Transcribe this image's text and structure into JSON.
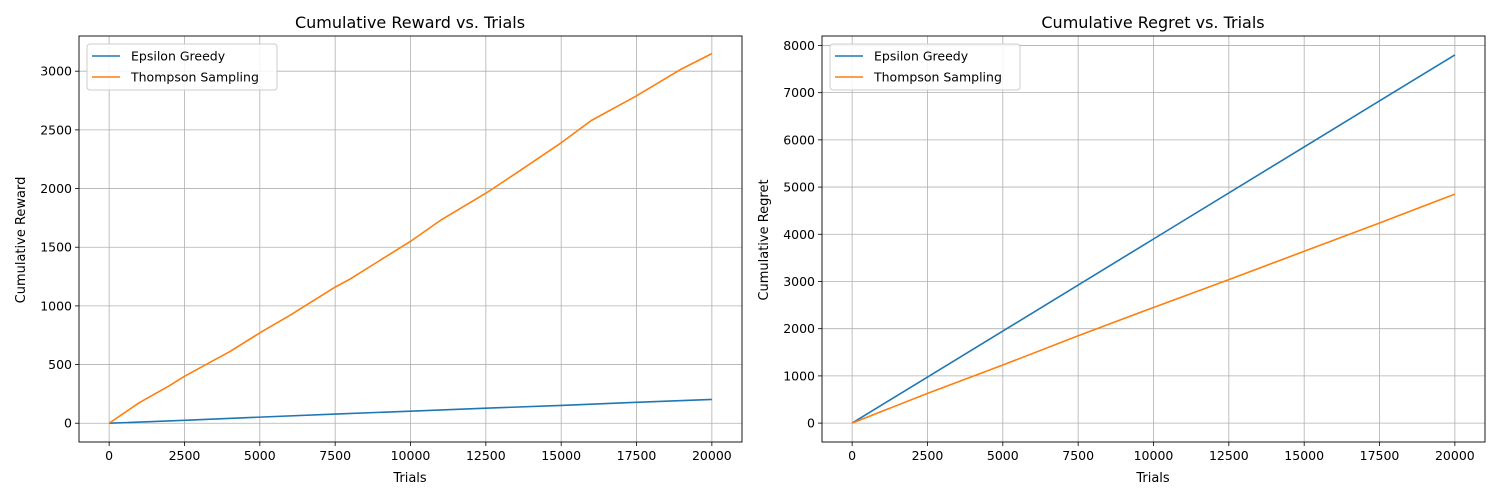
{
  "chart_data": [
    {
      "type": "line",
      "title": "Cumulative Reward vs. Trials",
      "xlabel": "Trials",
      "ylabel": "Cumulative Reward",
      "xlim": [
        -1000,
        21000
      ],
      "ylim": [
        -160,
        3300
      ],
      "xticks": [
        0,
        2500,
        5000,
        7500,
        10000,
        12500,
        15000,
        17500,
        20000
      ],
      "yticks": [
        0,
        500,
        1000,
        1500,
        2000,
        2500,
        3000
      ],
      "grid": true,
      "legend_position": "top-left",
      "series": [
        {
          "name": "Epsilon Greedy",
          "color": "#1f77b4",
          "x": [
            0,
            2500,
            5000,
            7500,
            10000,
            12500,
            15000,
            17500,
            20000
          ],
          "y": [
            0,
            25,
            52,
            78,
            103,
            128,
            152,
            178,
            203
          ]
        },
        {
          "name": "Thompson Sampling",
          "color": "#ff7f0e",
          "x": [
            0,
            1000,
            2000,
            2500,
            3500,
            4000,
            5000,
            6000,
            7500,
            8000,
            9000,
            10000,
            11000,
            12500,
            13500,
            15000,
            16000,
            17500,
            19000,
            20000
          ],
          "y": [
            0,
            175,
            320,
            400,
            540,
            610,
            770,
            920,
            1160,
            1230,
            1390,
            1550,
            1730,
            1960,
            2130,
            2390,
            2580,
            2790,
            3020,
            3150
          ]
        }
      ]
    },
    {
      "type": "line",
      "title": "Cumulative Regret vs. Trials",
      "xlabel": "Trials",
      "ylabel": "Cumulative Regret",
      "xlim": [
        -1000,
        21000
      ],
      "ylim": [
        -400,
        8200
      ],
      "xticks": [
        0,
        2500,
        5000,
        7500,
        10000,
        12500,
        15000,
        17500,
        20000
      ],
      "yticks": [
        0,
        1000,
        2000,
        3000,
        4000,
        5000,
        6000,
        7000,
        8000
      ],
      "grid": true,
      "legend_position": "top-left",
      "series": [
        {
          "name": "Epsilon Greedy",
          "color": "#1f77b4",
          "x": [
            0,
            5000,
            10000,
            15000,
            20000
          ],
          "y": [
            0,
            1950,
            3900,
            5850,
            7800
          ]
        },
        {
          "name": "Thompson Sampling",
          "color": "#ff7f0e",
          "x": [
            0,
            2500,
            5000,
            7500,
            10000,
            12500,
            15000,
            17500,
            20000
          ],
          "y": [
            0,
            630,
            1230,
            1850,
            2450,
            3040,
            3640,
            4240,
            4850
          ]
        }
      ]
    }
  ]
}
